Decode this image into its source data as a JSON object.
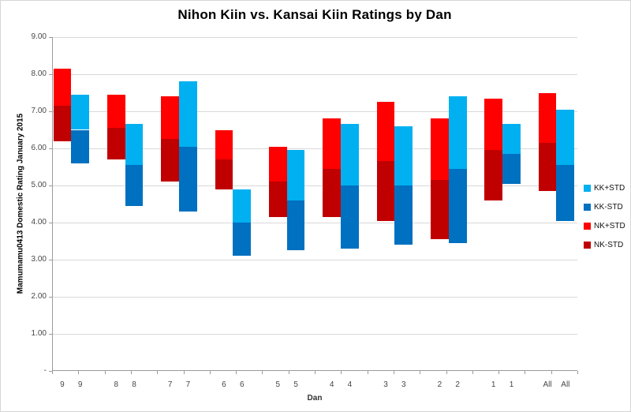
{
  "chart_data": {
    "type": "bar",
    "subtype": "floating-range-stacked",
    "title": "Nihon Kiin vs. Kansai Kiin Ratings by Dan",
    "xlabel": "Dan",
    "ylabel": "Mamumamu0413 Domestic Rating January 2015",
    "ylim": [
      0,
      9
    ],
    "grid": true,
    "legend_position": "right",
    "ytick_labels": [
      "9.00",
      "8.00",
      "7.00",
      "6.00",
      "5.00",
      "4.00",
      "3.00",
      "2.00",
      "1.00",
      "-"
    ],
    "categories": [
      "9",
      "8",
      "7",
      "6",
      "5",
      "4",
      "3",
      "2",
      "1",
      "All"
    ],
    "x_label_note": "each dan category is labeled once under the NK bar and once under the KK bar",
    "series": [
      {
        "name": "NK",
        "color_plus": "#FF0000",
        "color_minus": "#C00000",
        "minus_std": [
          6.2,
          5.7,
          5.1,
          4.9,
          4.15,
          4.15,
          4.05,
          3.55,
          4.6,
          4.85
        ],
        "mean": [
          7.15,
          6.55,
          6.25,
          5.7,
          5.1,
          5.45,
          5.65,
          5.15,
          5.95,
          6.15
        ],
        "plus_std": [
          8.15,
          7.45,
          7.4,
          6.5,
          6.05,
          6.8,
          7.25,
          6.8,
          7.35,
          7.5
        ]
      },
      {
        "name": "KK",
        "color_plus": "#00B0F0",
        "color_minus": "#0070C0",
        "minus_std": [
          5.6,
          4.45,
          4.3,
          3.1,
          3.25,
          3.3,
          3.4,
          3.45,
          5.05,
          4.05
        ],
        "mean": [
          6.5,
          5.55,
          6.05,
          4.0,
          4.6,
          5.0,
          5.0,
          5.45,
          5.85,
          5.55
        ],
        "plus_std": [
          7.45,
          6.65,
          7.8,
          4.9,
          5.95,
          6.65,
          6.6,
          7.4,
          6.65,
          7.05
        ]
      }
    ],
    "legend": [
      {
        "label": "KK+STD",
        "color": "#00B0F0"
      },
      {
        "label": "KK-STD",
        "color": "#0070C0"
      },
      {
        "label": "NK+STD",
        "color": "#FF0000"
      },
      {
        "label": "NK-STD",
        "color": "#C00000"
      }
    ],
    "colors": {
      "gridline": "#d9d9d9",
      "axis_line": "#9b9b9b",
      "background": "#ffffff"
    }
  }
}
